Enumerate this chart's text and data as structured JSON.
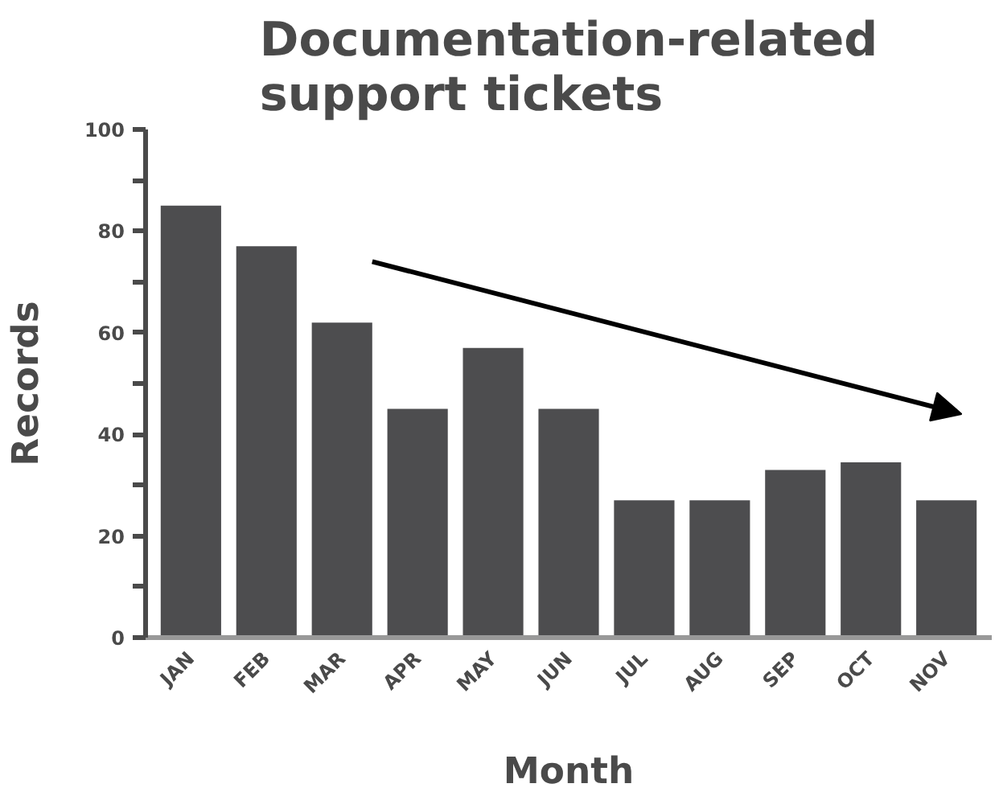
{
  "chart_data": {
    "type": "bar",
    "title": "Documentation-related\nsupport tickets",
    "xlabel": "Month",
    "ylabel": "Records",
    "categories": [
      "JAN",
      "FEB",
      "MAR",
      "APR",
      "MAY",
      "JUN",
      "JUL",
      "AUG",
      "SEP",
      "OCT",
      "NOV"
    ],
    "values": [
      85,
      77,
      62,
      45,
      57,
      45,
      27,
      27,
      33,
      34.5,
      27
    ],
    "color": "#4d4d4f",
    "ylim": [
      0,
      100
    ],
    "yticks": [
      0,
      {
        "value": 10,
        "label": null
      },
      20,
      {
        "value": 30,
        "label": null
      },
      40,
      {
        "value": 50,
        "label": null
      },
      60,
      {
        "value": 70,
        "label": null
      },
      80,
      {
        "value": 90,
        "label": null
      },
      100
    ],
    "grid": false
  }
}
